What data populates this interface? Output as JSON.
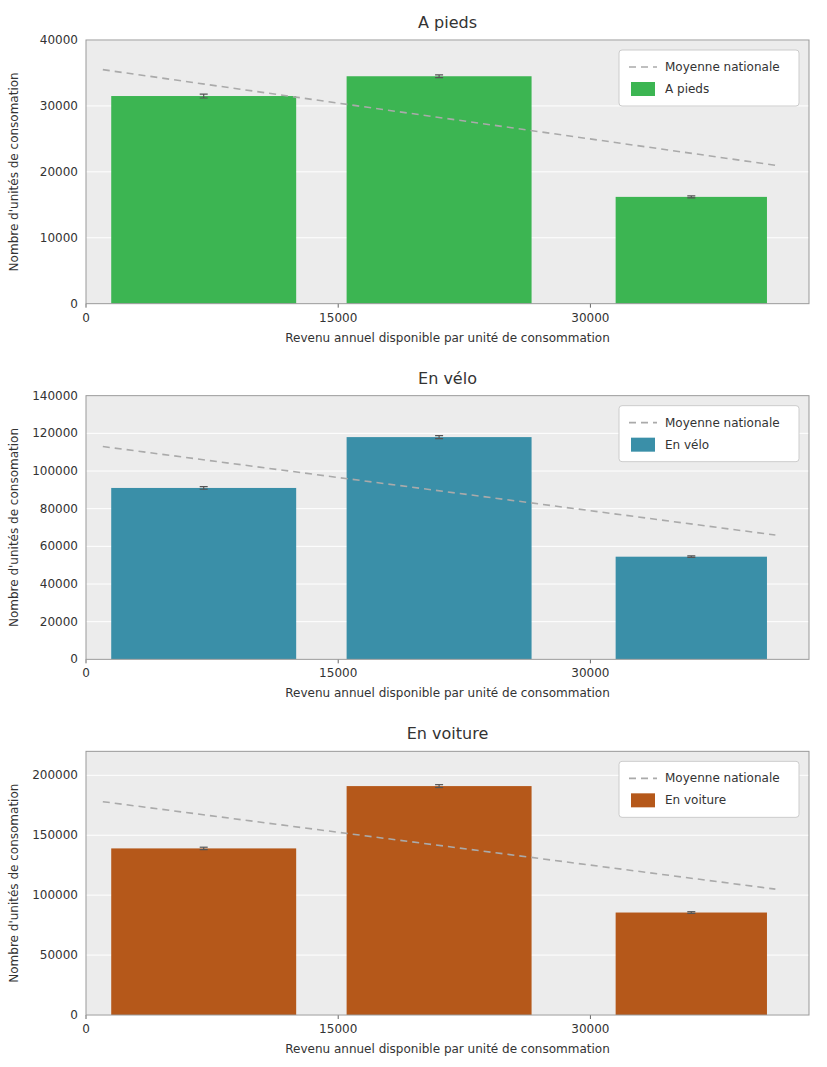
{
  "chart_data": [
    {
      "type": "bar",
      "title": "A pieds",
      "xlabel": "Revenu annuel disponible par unité de consommation",
      "ylabel": "Nombre d'unités de consomation",
      "x": [
        7000,
        21000,
        36000
      ],
      "widths": [
        11000,
        11000,
        9000
      ],
      "series": [
        {
          "name": "A pieds",
          "type": "bar",
          "color": "#3cb552",
          "values": [
            31500,
            34500,
            16200
          ],
          "errors": [
            300,
            200,
            150
          ]
        },
        {
          "name": "Moyenne nationale",
          "type": "line",
          "line_style": "dashed",
          "color": "#aaaaaa",
          "x": [
            1000,
            41000
          ],
          "values": [
            35500,
            21000
          ]
        }
      ],
      "xlim": [
        0,
        43000
      ],
      "xticks": [
        0,
        15000,
        30000
      ],
      "ylim": [
        0,
        40000
      ],
      "yticks": [
        0,
        10000,
        20000,
        30000,
        40000
      ],
      "grid": true,
      "legend": "upper right"
    },
    {
      "type": "bar",
      "title": "En vélo",
      "xlabel": "Revenu annuel disponible par unité de consommation",
      "ylabel": "Nombre d'unités de consomation",
      "x": [
        7000,
        21000,
        36000
      ],
      "widths": [
        11000,
        11000,
        9000
      ],
      "series": [
        {
          "name": "En vélo",
          "type": "bar",
          "color": "#3a8fa8",
          "values": [
            91000,
            118000,
            54500
          ],
          "errors": [
            700,
            800,
            400
          ]
        },
        {
          "name": "Moyenne nationale",
          "type": "line",
          "line_style": "dashed",
          "color": "#aaaaaa",
          "x": [
            1000,
            41000
          ],
          "values": [
            113000,
            66000
          ]
        }
      ],
      "xlim": [
        0,
        43000
      ],
      "xticks": [
        0,
        15000,
        30000
      ],
      "ylim": [
        0,
        140000
      ],
      "yticks": [
        0,
        20000,
        40000,
        60000,
        80000,
        100000,
        120000,
        140000
      ],
      "grid": true,
      "legend": "upper right"
    },
    {
      "type": "bar",
      "title": "En voiture",
      "xlabel": "Revenu annuel disponible par unité de consommation",
      "ylabel": "Nombre d'unités de consomation",
      "x": [
        7000,
        21000,
        36000
      ],
      "widths": [
        11000,
        11000,
        9000
      ],
      "series": [
        {
          "name": "En voiture",
          "type": "bar",
          "color": "#b5581a",
          "values": [
            139000,
            191000,
            85500
          ],
          "errors": [
            1000,
            1200,
            700
          ]
        },
        {
          "name": "Moyenne nationale",
          "type": "line",
          "line_style": "dashed",
          "color": "#aaaaaa",
          "x": [
            1000,
            41000
          ],
          "values": [
            178000,
            105000
          ]
        }
      ],
      "xlim": [
        0,
        43000
      ],
      "xticks": [
        0,
        15000,
        30000
      ],
      "ylim": [
        0,
        220000
      ],
      "yticks": [
        0,
        50000,
        100000,
        150000,
        200000
      ],
      "grid": true,
      "legend": "upper right"
    }
  ]
}
